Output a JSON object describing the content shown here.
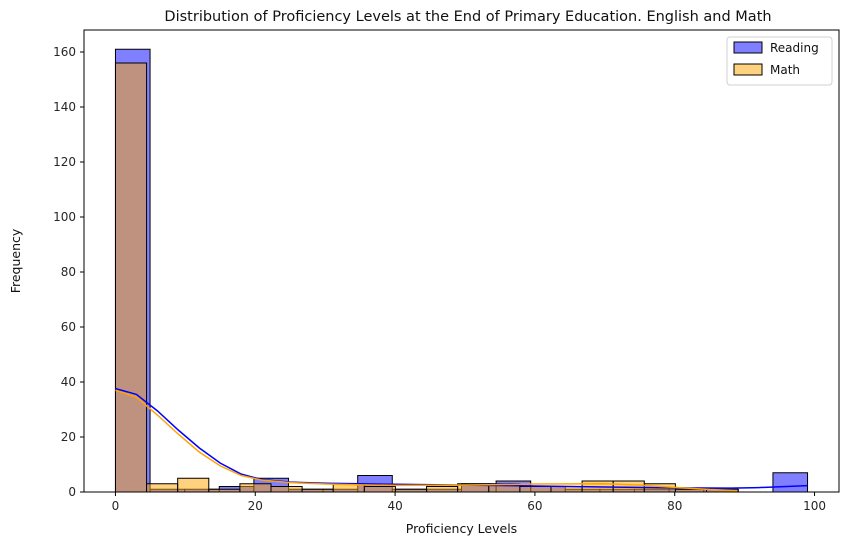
{
  "chart_data": {
    "type": "histogram",
    "title": "Distribution of Proficiency Levels at the End of Primary Education. English and Math",
    "xlabel": "Proficiency Levels",
    "ylabel": "Frequency",
    "xlim": [
      -4.5,
      103.5
    ],
    "ylim": [
      0,
      168
    ],
    "xticks": [
      0,
      20,
      40,
      60,
      80,
      100
    ],
    "yticks": [
      0,
      20,
      40,
      60,
      80,
      100,
      120,
      140,
      160
    ],
    "grid": false,
    "legend_position": "top-right",
    "series": [
      {
        "name": "Reading",
        "color": "#0000ff",
        "fill": "#8080ff",
        "bins": [
          {
            "x0": 0,
            "x1": 4.95,
            "value": 161
          },
          {
            "x0": 4.95,
            "x1": 9.9,
            "value": 1
          },
          {
            "x0": 9.9,
            "x1": 14.85,
            "value": 1
          },
          {
            "x0": 14.85,
            "x1": 19.8,
            "value": 2
          },
          {
            "x0": 19.8,
            "x1": 24.75,
            "value": 5
          },
          {
            "x0": 24.75,
            "x1": 29.7,
            "value": 1
          },
          {
            "x0": 29.7,
            "x1": 34.65,
            "value": 1
          },
          {
            "x0": 34.65,
            "x1": 39.6,
            "value": 6
          },
          {
            "x0": 39.6,
            "x1": 44.55,
            "value": 1
          },
          {
            "x0": 44.55,
            "x1": 49.5,
            "value": 1
          },
          {
            "x0": 49.5,
            "x1": 54.45,
            "value": 3
          },
          {
            "x0": 54.45,
            "x1": 59.4,
            "value": 4
          },
          {
            "x0": 59.4,
            "x1": 64.35,
            "value": 2
          },
          {
            "x0": 64.35,
            "x1": 69.3,
            "value": 1
          },
          {
            "x0": 69.3,
            "x1": 74.25,
            "value": 1
          },
          {
            "x0": 74.25,
            "x1": 79.2,
            "value": 1
          },
          {
            "x0": 79.2,
            "x1": 84.15,
            "value": 1
          },
          {
            "x0": 84.15,
            "x1": 89.1,
            "value": 1
          },
          {
            "x0": 89.1,
            "x1": 94.05,
            "value": 0
          },
          {
            "x0": 94.05,
            "x1": 99,
            "value": 7
          }
        ],
        "kde": [
          [
            0,
            37.6
          ],
          [
            3,
            35.5
          ],
          [
            6,
            29.5
          ],
          [
            9,
            22.5
          ],
          [
            12,
            16
          ],
          [
            15,
            10.5
          ],
          [
            18,
            6.5
          ],
          [
            21,
            4.5
          ],
          [
            25,
            3.6
          ],
          [
            30,
            3.2
          ],
          [
            35,
            3
          ],
          [
            40,
            2.8
          ],
          [
            50,
            2.5
          ],
          [
            60,
            2.2
          ],
          [
            70,
            1.8
          ],
          [
            80,
            1.5
          ],
          [
            88,
            1.4
          ],
          [
            92,
            1.6
          ],
          [
            96,
            2
          ],
          [
            99,
            2.3
          ]
        ]
      },
      {
        "name": "Math",
        "color": "#ffa500",
        "fill": "#ffd280",
        "bins": [
          {
            "x0": 0,
            "x1": 4.45,
            "value": 156
          },
          {
            "x0": 4.45,
            "x1": 8.9,
            "value": 3
          },
          {
            "x0": 8.9,
            "x1": 13.35,
            "value": 5
          },
          {
            "x0": 13.35,
            "x1": 17.8,
            "value": 1
          },
          {
            "x0": 17.8,
            "x1": 22.25,
            "value": 3
          },
          {
            "x0": 22.25,
            "x1": 26.7,
            "value": 2
          },
          {
            "x0": 26.7,
            "x1": 31.15,
            "value": 1
          },
          {
            "x0": 31.15,
            "x1": 35.6,
            "value": 3
          },
          {
            "x0": 35.6,
            "x1": 40.05,
            "value": 2
          },
          {
            "x0": 40.05,
            "x1": 44.5,
            "value": 1
          },
          {
            "x0": 44.5,
            "x1": 48.95,
            "value": 2
          },
          {
            "x0": 48.95,
            "x1": 53.4,
            "value": 3
          },
          {
            "x0": 53.4,
            "x1": 57.85,
            "value": 3
          },
          {
            "x0": 57.85,
            "x1": 62.3,
            "value": 2
          },
          {
            "x0": 62.3,
            "x1": 66.75,
            "value": 2
          },
          {
            "x0": 66.75,
            "x1": 71.2,
            "value": 4
          },
          {
            "x0": 71.2,
            "x1": 75.65,
            "value": 4
          },
          {
            "x0": 75.65,
            "x1": 80.1,
            "value": 3
          },
          {
            "x0": 80.1,
            "x1": 84.55,
            "value": 1
          },
          {
            "x0": 84.55,
            "x1": 89,
            "value": 1
          }
        ],
        "kde": [
          [
            0,
            37
          ],
          [
            3,
            34.5
          ],
          [
            6,
            28
          ],
          [
            9,
            21
          ],
          [
            12,
            14.5
          ],
          [
            15,
            9.5
          ],
          [
            18,
            6
          ],
          [
            21,
            4.3
          ],
          [
            25,
            3.4
          ],
          [
            30,
            2.9
          ],
          [
            35,
            2.6
          ],
          [
            40,
            2.4
          ],
          [
            50,
            2.5
          ],
          [
            60,
            2.9
          ],
          [
            70,
            3
          ],
          [
            75,
            2.5
          ],
          [
            80,
            1.7
          ],
          [
            85,
            0.9
          ],
          [
            89,
            0.5
          ]
        ]
      }
    ]
  }
}
